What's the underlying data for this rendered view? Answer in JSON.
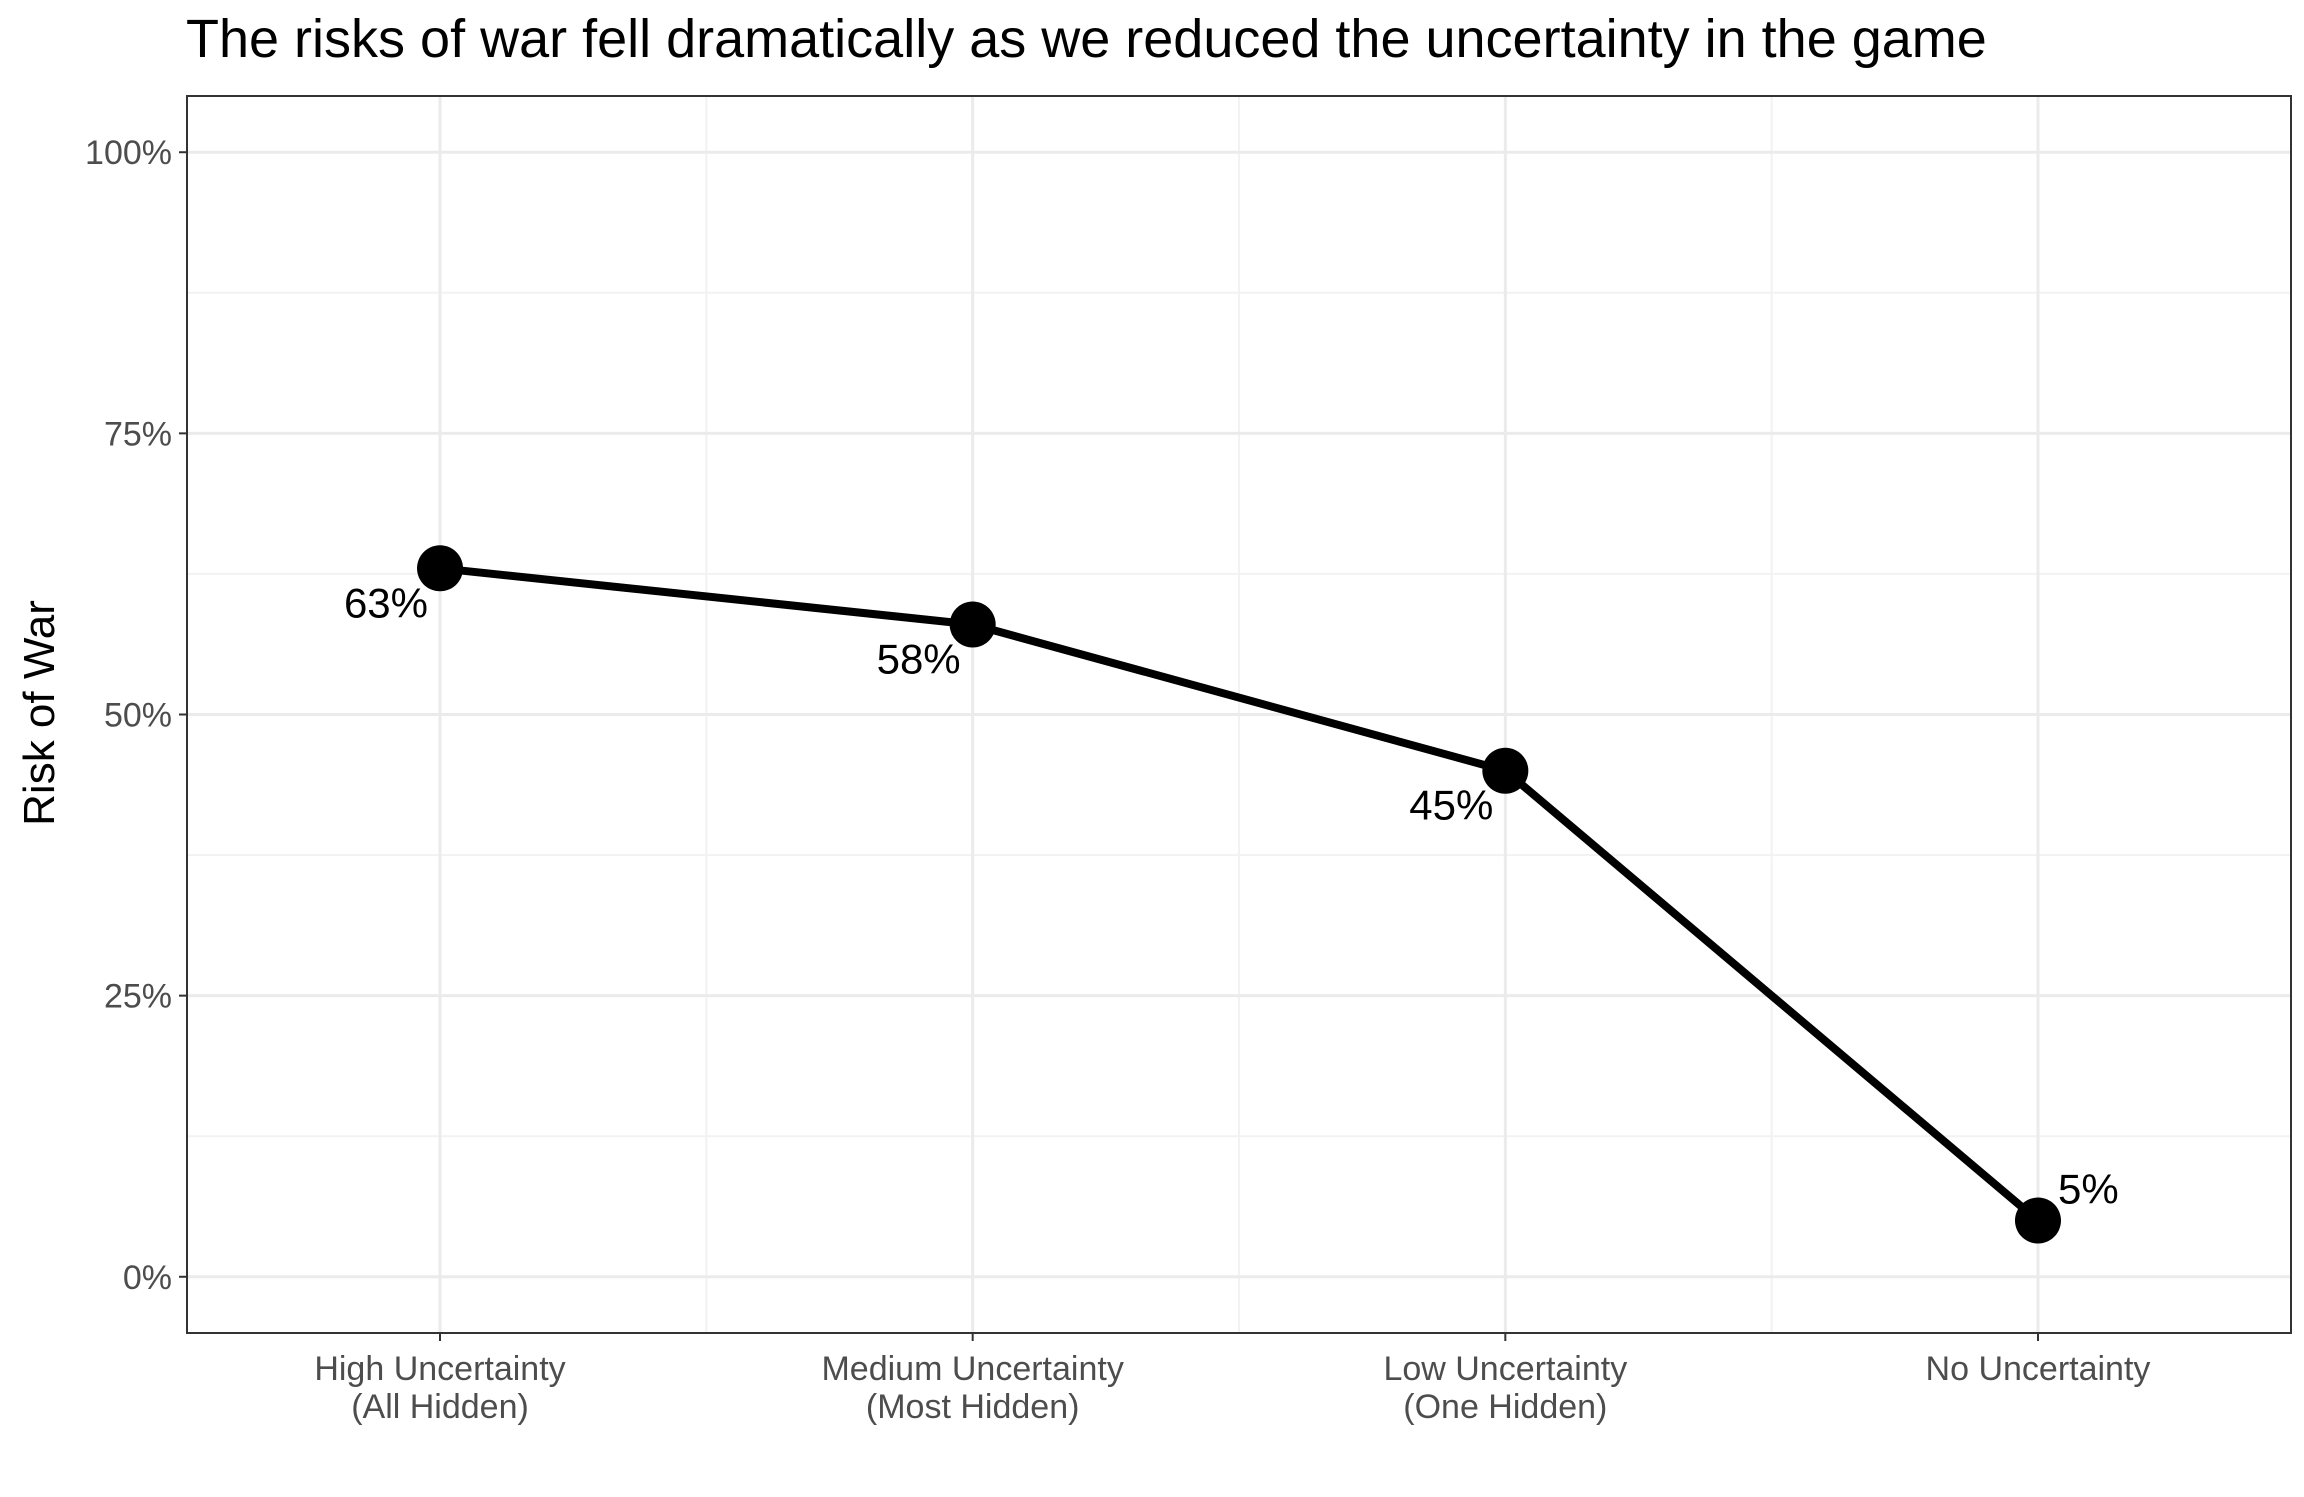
{
  "chart_data": {
    "type": "line",
    "title": "The risks of war fell dramatically as we reduced the uncertainty in the game",
    "xlabel": "",
    "ylabel": "Risk of War",
    "categories": [
      [
        "High Uncertainty",
        "(All Hidden)"
      ],
      [
        "Medium Uncertainty",
        "(Most Hidden)"
      ],
      [
        "Low Uncertainty",
        "(One Hidden)"
      ],
      [
        "No Uncertainty"
      ]
    ],
    "series": [
      {
        "name": "Risk of War",
        "values": [
          63,
          58,
          45,
          5
        ],
        "labels": [
          "63%",
          "58%",
          "45%",
          "5%"
        ]
      }
    ],
    "ylim": [
      -5,
      105
    ],
    "yticks": [
      0,
      25,
      50,
      75,
      100
    ],
    "ytick_labels": [
      "0%",
      "25%",
      "50%",
      "75%",
      "100%"
    ],
    "grid": true,
    "legend": "none",
    "colors": {
      "line": "#000000",
      "point": "#000000",
      "panel_border": "#333333",
      "grid_major": "#ebebeb",
      "grid_minor": "#f2f2f2",
      "tick_text": "#4d4d4d"
    }
  }
}
